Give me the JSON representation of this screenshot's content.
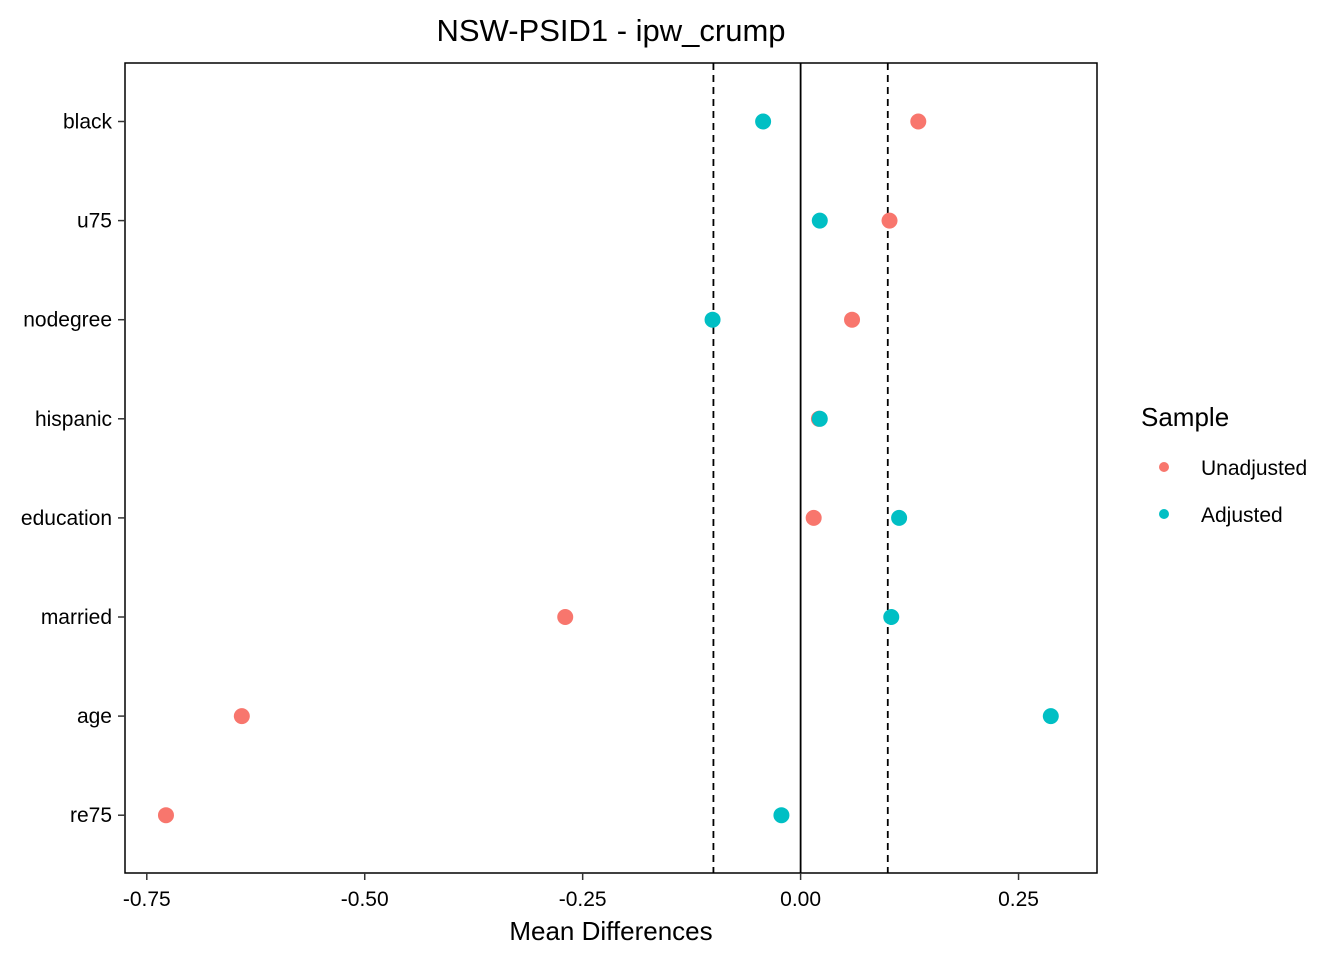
{
  "chart_data": {
    "type": "scatter",
    "title": "NSW-PSID1 - ipw_crump",
    "xlabel": "Mean Differences",
    "ylabel": "",
    "xlim": [
      -0.775,
      0.34
    ],
    "x_ticks": [
      -0.75,
      -0.5,
      -0.25,
      0.0,
      0.25
    ],
    "x_tick_labels": [
      "-0.75",
      "-0.50",
      "-0.25",
      "0.00",
      "0.25"
    ],
    "categories": [
      "black",
      "u75",
      "nodegree",
      "hispanic",
      "education",
      "married",
      "age",
      "re75"
    ],
    "reference_lines": {
      "solid": 0.0,
      "dashed": [
        -0.1,
        0.1
      ]
    },
    "grid": false,
    "legend": {
      "title": "Sample",
      "placement": "right",
      "entries": [
        "Unadjusted",
        "Adjusted"
      ]
    },
    "series": [
      {
        "name": "Unadjusted",
        "color": "#F8766D",
        "values": [
          0.135,
          0.102,
          0.059,
          0.021,
          0.015,
          -0.27,
          -0.641,
          -0.728
        ]
      },
      {
        "name": "Adjusted",
        "color": "#00BFC4",
        "values": [
          -0.043,
          0.022,
          -0.101,
          0.022,
          0.113,
          0.104,
          0.287,
          -0.022
        ]
      }
    ]
  }
}
